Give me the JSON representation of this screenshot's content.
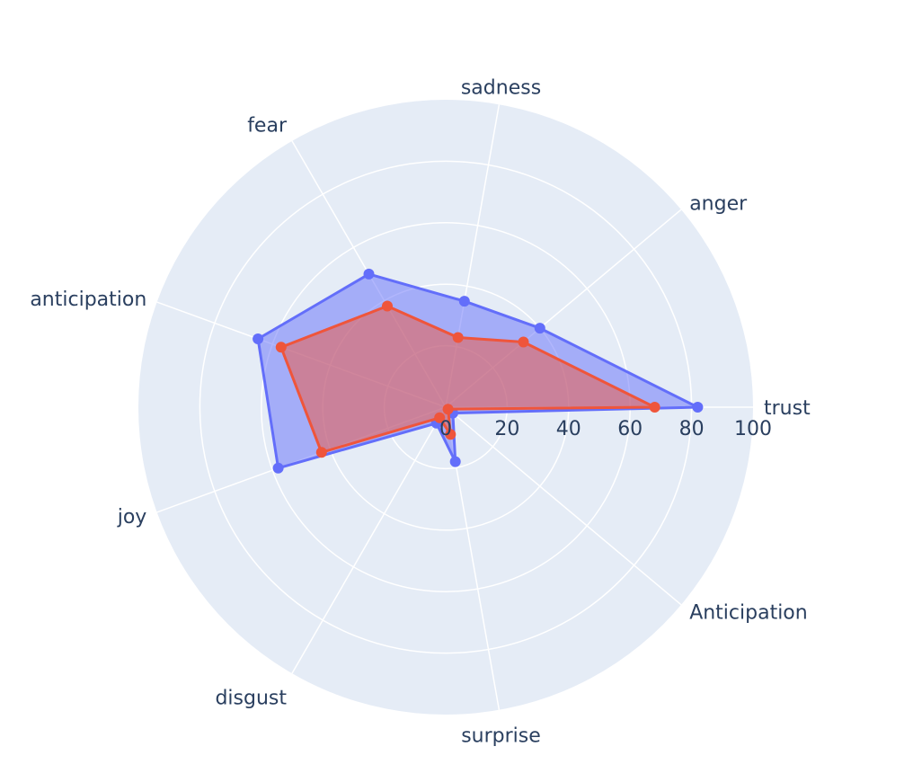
{
  "chart_data": {
    "type": "radar",
    "categories": [
      "trust",
      "anger",
      "sadness",
      "fear",
      "anticipation",
      "joy",
      "disgust",
      "surprise",
      "Anticipation"
    ],
    "radial_range": [
      0,
      100
    ],
    "radial_ticks": [
      0,
      20,
      40,
      60,
      80,
      100
    ],
    "grid": true,
    "legend": "none",
    "series": [
      {
        "values": [
          82,
          40,
          35,
          50,
          65,
          58,
          6,
          18,
          3
        ],
        "color": "#636efa",
        "fill": "toself"
      },
      {
        "values": [
          68,
          33,
          23,
          38,
          57,
          43,
          4,
          9,
          1
        ],
        "color": "#ef553b",
        "fill": "toself"
      }
    ]
  }
}
